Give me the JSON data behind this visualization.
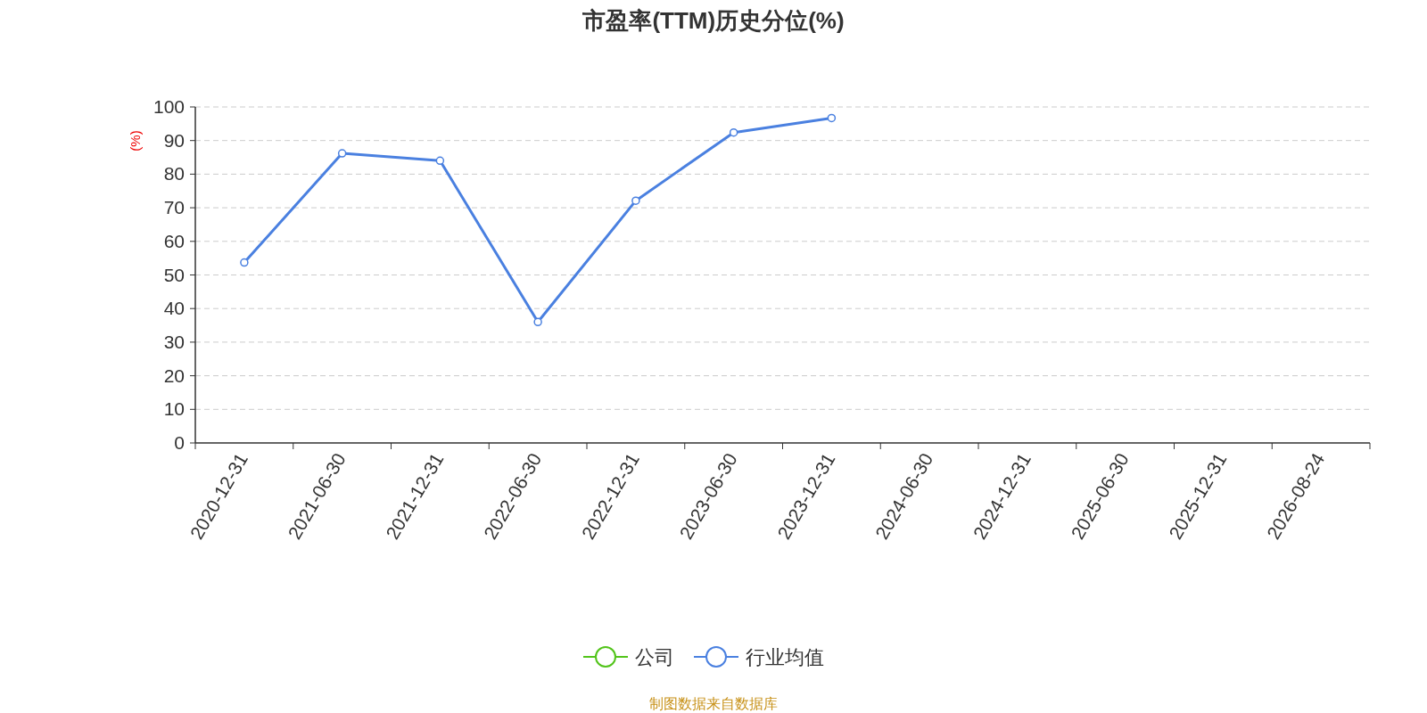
{
  "chart_data": {
    "type": "line",
    "title": "市盈率(TTM)历史分位(%)",
    "ylabel": "(%)",
    "annotations": [
      "制图数据来自数据库"
    ],
    "categories": [
      "2020-12-31",
      "2021-06-30",
      "2021-12-31",
      "2022-06-30",
      "2022-12-31",
      "2023-06-30",
      "2023-12-31",
      "2024-06-30",
      "2024-12-31",
      "2025-06-30",
      "2025-12-31",
      "2026-08-24"
    ],
    "series": [
      {
        "name": "公司",
        "color": "#52c41a",
        "values": [
          null,
          null,
          null,
          null,
          null,
          null,
          null,
          null,
          null,
          null,
          null,
          null
        ]
      },
      {
        "name": "行业均值",
        "color": "#4a80e0",
        "values": [
          53.7,
          86.2,
          84.0,
          36.0,
          72.1,
          92.4,
          96.7,
          null,
          null,
          null,
          null,
          null
        ]
      }
    ],
    "ylim": [
      0,
      100
    ],
    "yticks": [
      0,
      10,
      20,
      30,
      40,
      50,
      60,
      70,
      80,
      90,
      100
    ],
    "grid": "y",
    "legend": "bottom",
    "marker": "circle",
    "line_style": "solid"
  }
}
